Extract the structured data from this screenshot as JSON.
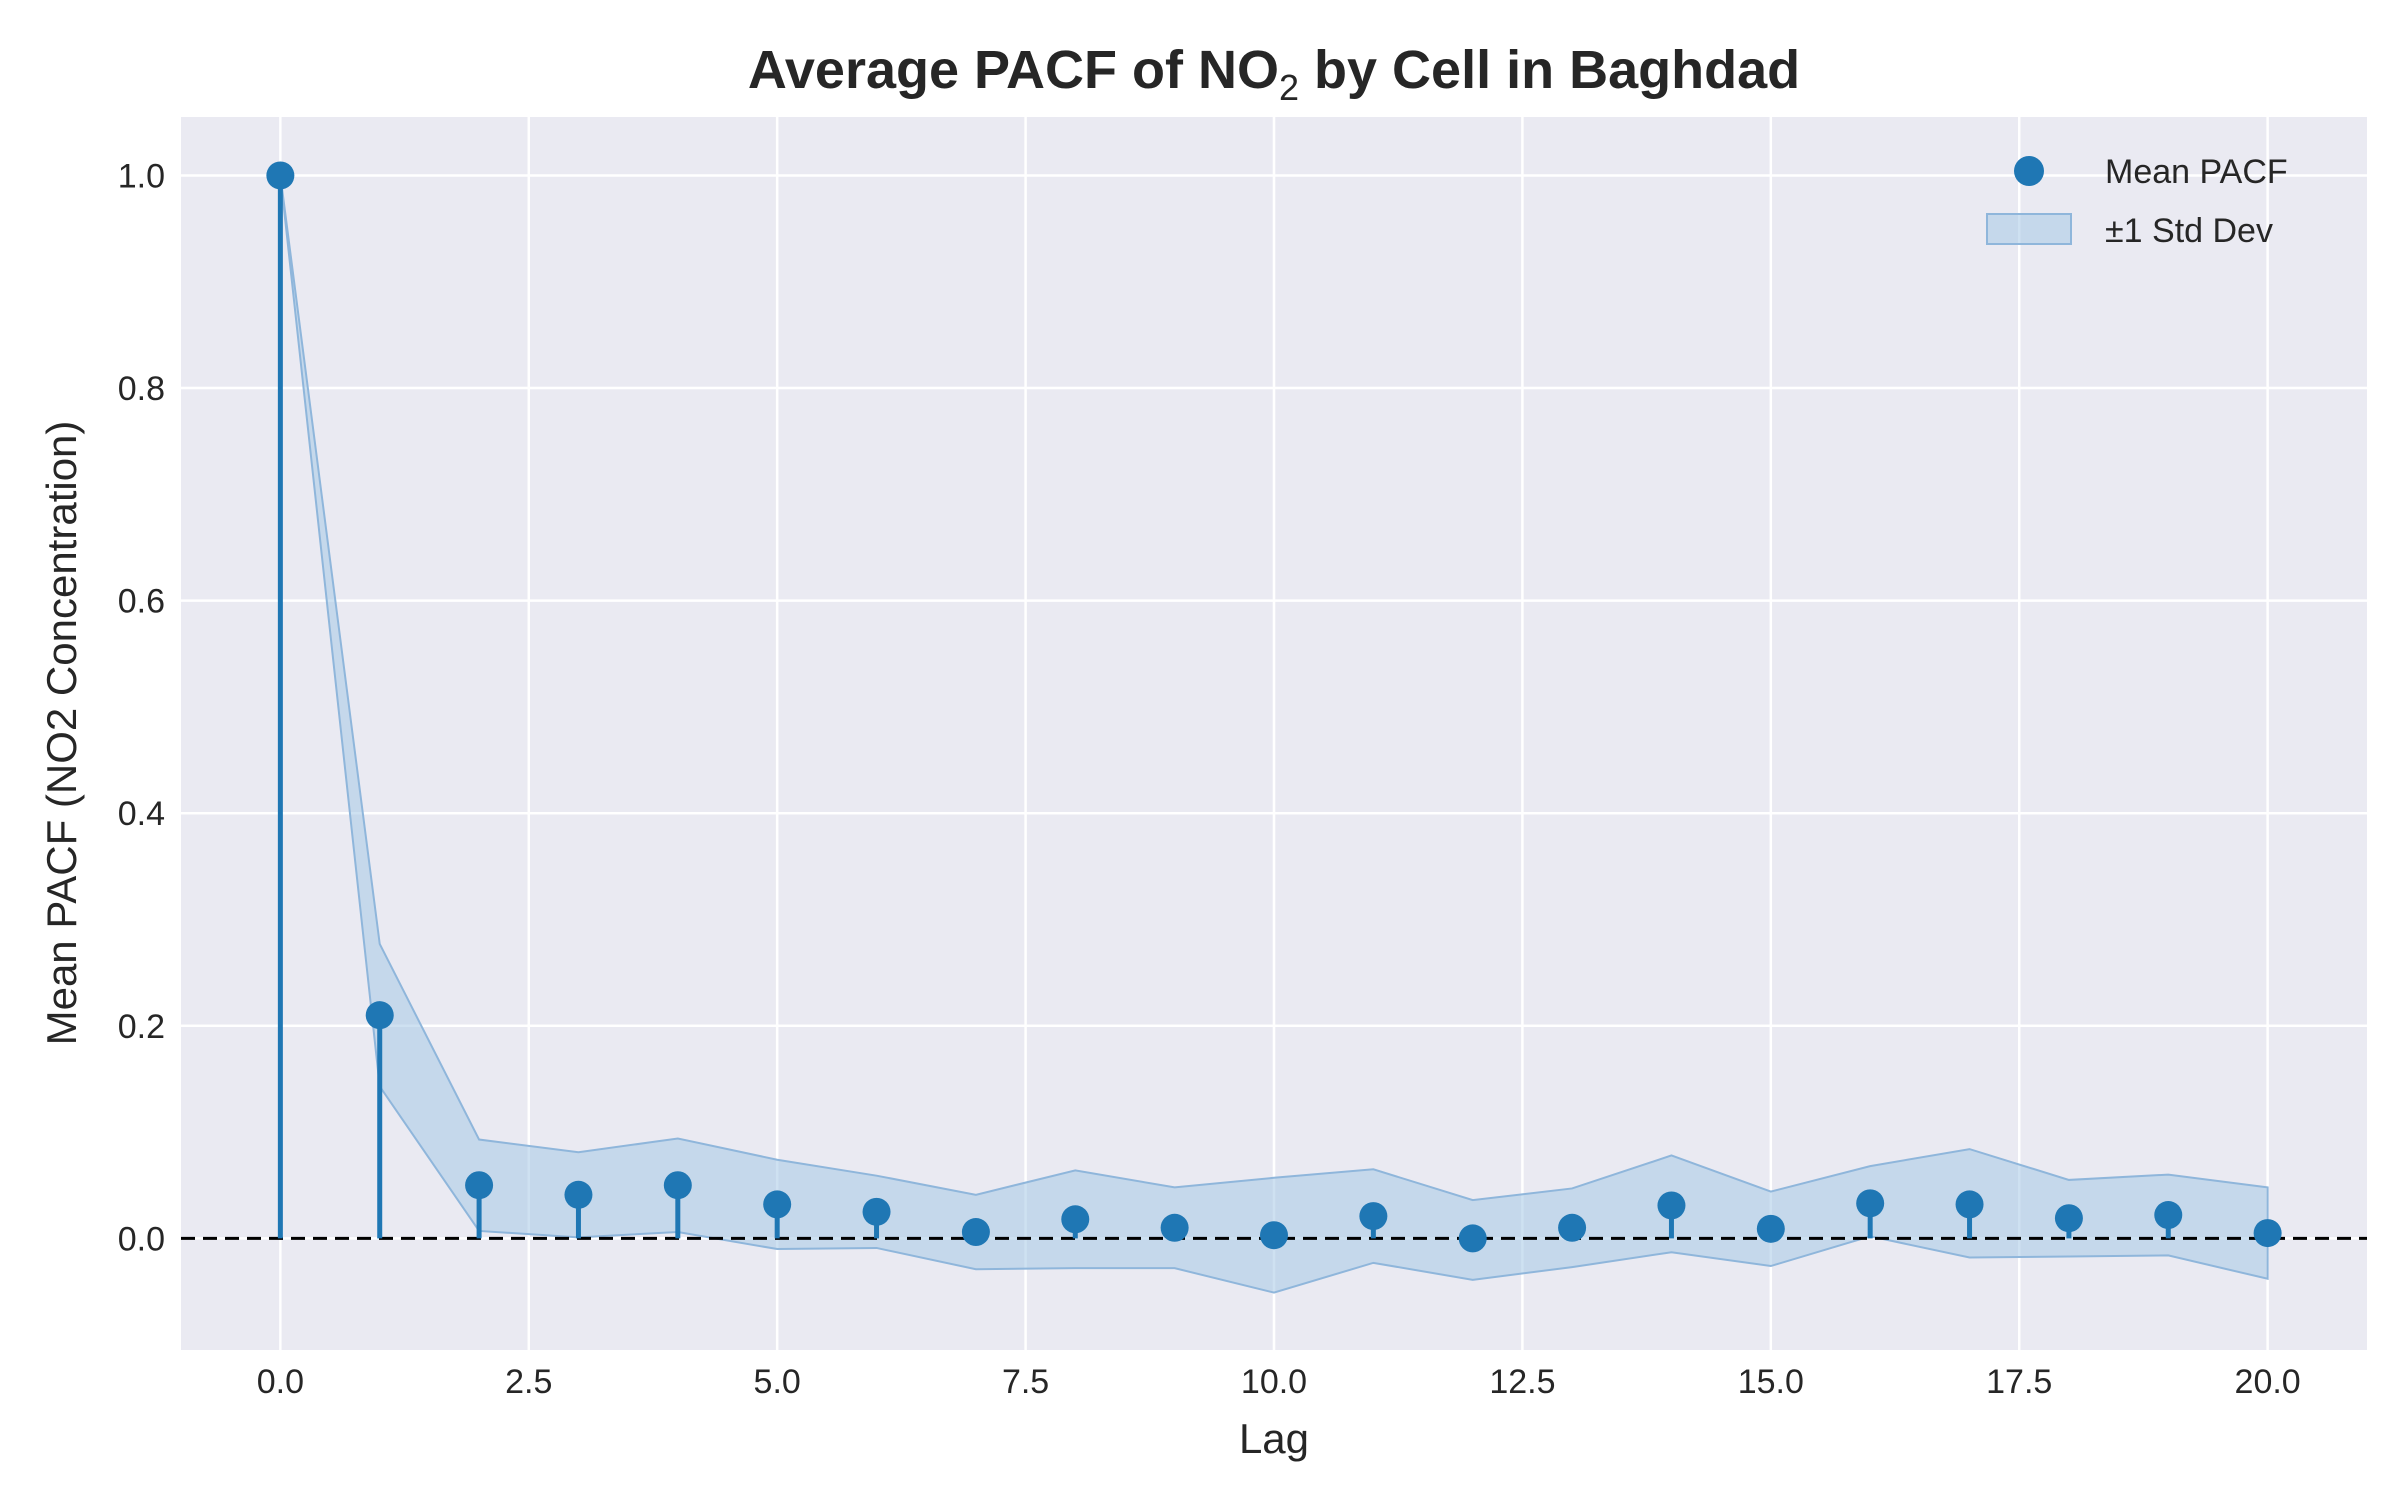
{
  "chart_data": {
    "type": "scatter",
    "title_main": "Average PACF of NO",
    "title_sub": "2",
    "title_rest": " by Cell in Baghdad",
    "xlabel": "Lag",
    "ylabel": "Mean PACF (NO2 Concentration)",
    "xlim": [
      -1,
      21
    ],
    "ylim": [
      -0.105,
      1.055
    ],
    "xticks": [
      0,
      2.5,
      5,
      7.5,
      10,
      12.5,
      15,
      17.5,
      20
    ],
    "xtick_labels": [
      "0.0",
      "2.5",
      "5.0",
      "7.5",
      "10.0",
      "12.5",
      "15.0",
      "17.5",
      "20.0"
    ],
    "yticks": [
      0,
      0.2,
      0.4,
      0.6,
      0.8,
      1.0
    ],
    "ytick_labels": [
      "0.0",
      "0.2",
      "0.4",
      "0.6",
      "0.8",
      "1.0"
    ],
    "grid": true,
    "legend_position": "top-right",
    "zero_line": 0,
    "colors": {
      "plot_bg": "#eaeaf2",
      "grid": "#ffffff",
      "marker": "#1f77b4",
      "band_fill": "#a6c8e6",
      "band_edge": "#8fb6db",
      "zero_line": "#000000"
    },
    "x": [
      0,
      1,
      2,
      3,
      4,
      5,
      6,
      7,
      8,
      9,
      10,
      11,
      12,
      13,
      14,
      15,
      16,
      17,
      18,
      19,
      20
    ],
    "series": [
      {
        "name": "Mean PACF",
        "values": [
          1.0,
          0.21,
          0.05,
          0.041,
          0.05,
          0.032,
          0.025,
          0.006,
          0.018,
          0.01,
          0.003,
          0.021,
          0.0,
          0.01,
          0.031,
          0.009,
          0.033,
          0.032,
          0.019,
          0.022,
          0.005
        ]
      }
    ],
    "band": {
      "name": "±1 Std Dev",
      "upper": [
        1.0,
        0.277,
        0.093,
        0.081,
        0.094,
        0.074,
        0.059,
        0.041,
        0.064,
        0.048,
        0.057,
        0.065,
        0.036,
        0.047,
        0.078,
        0.044,
        0.068,
        0.084,
        0.055,
        0.06,
        0.048
      ],
      "lower": [
        1.0,
        0.143,
        0.007,
        0.001,
        0.006,
        -0.01,
        -0.009,
        -0.029,
        -0.028,
        -0.028,
        -0.051,
        -0.023,
        -0.039,
        -0.027,
        -0.013,
        -0.026,
        0.002,
        -0.018,
        -0.017,
        -0.016,
        -0.038
      ]
    }
  }
}
